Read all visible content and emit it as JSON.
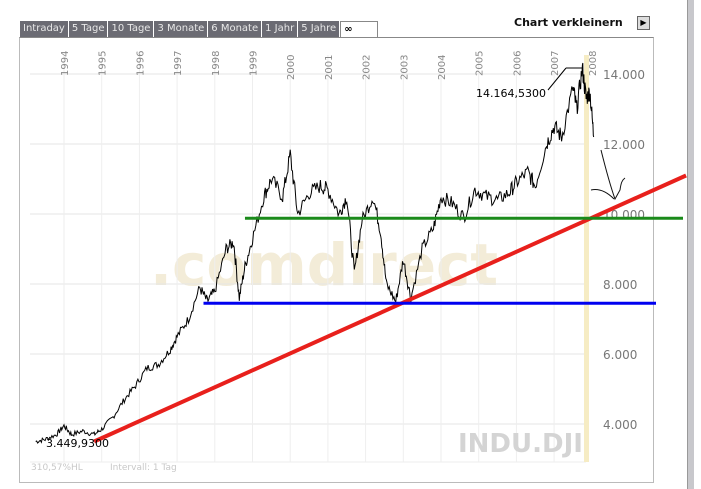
{
  "tabs": [
    "Intraday",
    "5 Tage",
    "10 Tage",
    "3 Monate",
    "6 Monate",
    "1 Jahr",
    "5 Jahre",
    "∞"
  ],
  "shrink_label": "Chart verkleinern",
  "footer": {
    "range": "310,57%HL",
    "interval": "Intervall: 1 Tag"
  },
  "chart_data": {
    "type": "line",
    "symbol": "INDU.DJI",
    "watermark": ".comdirect",
    "x_ticks": [
      "1994",
      "1995",
      "1996",
      "1997",
      "1998",
      "1999",
      "2000",
      "2001",
      "2002",
      "2003",
      "2004",
      "2005",
      "2006",
      "2007",
      "2008"
    ],
    "y_ticks": [
      "4.000",
      "6.000",
      "8.000",
      "10.000",
      "12.000",
      "14.000"
    ],
    "y_tick_values": [
      4000,
      6000,
      8000,
      10000,
      12000,
      14000
    ],
    "ylim": [
      3300,
      14600
    ],
    "xlim": [
      1993.25,
      2008.2
    ],
    "grid": true,
    "annotations": {
      "max_label": "14.164,5300",
      "min_label": "3.449,9300",
      "max": 14164.53,
      "min": 3449.93
    },
    "series": [
      [
        1993.25,
        3500
      ],
      [
        1993.5,
        3560
      ],
      [
        1993.8,
        3700
      ],
      [
        1994.0,
        3950
      ],
      [
        1994.2,
        3700
      ],
      [
        1994.5,
        3800
      ],
      [
        1994.8,
        3700
      ],
      [
        1995.0,
        3850
      ],
      [
        1995.3,
        4200
      ],
      [
        1995.6,
        4700
      ],
      [
        1995.9,
        5100
      ],
      [
        1996.2,
        5600
      ],
      [
        1996.5,
        5700
      ],
      [
        1996.8,
        6100
      ],
      [
        1997.0,
        6500
      ],
      [
        1997.3,
        7000
      ],
      [
        1997.6,
        7900
      ],
      [
        1997.8,
        7500
      ],
      [
        1998.0,
        7800
      ],
      [
        1998.3,
        9000
      ],
      [
        1998.5,
        9200
      ],
      [
        1998.65,
        7600
      ],
      [
        1998.8,
        8500
      ],
      [
        1999.0,
        9300
      ],
      [
        1999.3,
        10500
      ],
      [
        1999.5,
        11000
      ],
      [
        1999.8,
        10500
      ],
      [
        2000.0,
        11700
      ],
      [
        2000.2,
        10000
      ],
      [
        2000.5,
        10600
      ],
      [
        2000.8,
        10800
      ],
      [
        2001.0,
        10700
      ],
      [
        2001.3,
        10000
      ],
      [
        2001.5,
        10500
      ],
      [
        2001.7,
        8300
      ],
      [
        2001.9,
        9800
      ],
      [
        2002.2,
        10500
      ],
      [
        2002.4,
        9500
      ],
      [
        2002.55,
        8000
      ],
      [
        2002.8,
        7500
      ],
      [
        2003.0,
        8700
      ],
      [
        2003.2,
        7600
      ],
      [
        2003.5,
        9000
      ],
      [
        2003.8,
        9600
      ],
      [
        2004.0,
        10500
      ],
      [
        2004.3,
        10300
      ],
      [
        2004.6,
        9900
      ],
      [
        2004.9,
        10700
      ],
      [
        2005.2,
        10500
      ],
      [
        2005.5,
        10400
      ],
      [
        2005.8,
        10600
      ],
      [
        2006.0,
        10900
      ],
      [
        2006.3,
        11200
      ],
      [
        2006.5,
        10800
      ],
      [
        2006.8,
        12000
      ],
      [
        2007.0,
        12500
      ],
      [
        2007.2,
        12200
      ],
      [
        2007.5,
        13600
      ],
      [
        2007.6,
        13000
      ],
      [
        2007.75,
        14164
      ],
      [
        2007.85,
        13300
      ],
      [
        2007.95,
        13500
      ],
      [
        2008.05,
        12200
      ]
    ],
    "lines": [
      {
        "color": "#e8201c",
        "from": [
          1994.8,
          3500
        ],
        "to": [
          2010.5,
          11100
        ]
      },
      {
        "color": "#0000f0",
        "level": 7450,
        "from": 1997.7
      },
      {
        "color": "#1a8a1a",
        "level": 9880,
        "from": 1998.8
      }
    ]
  }
}
